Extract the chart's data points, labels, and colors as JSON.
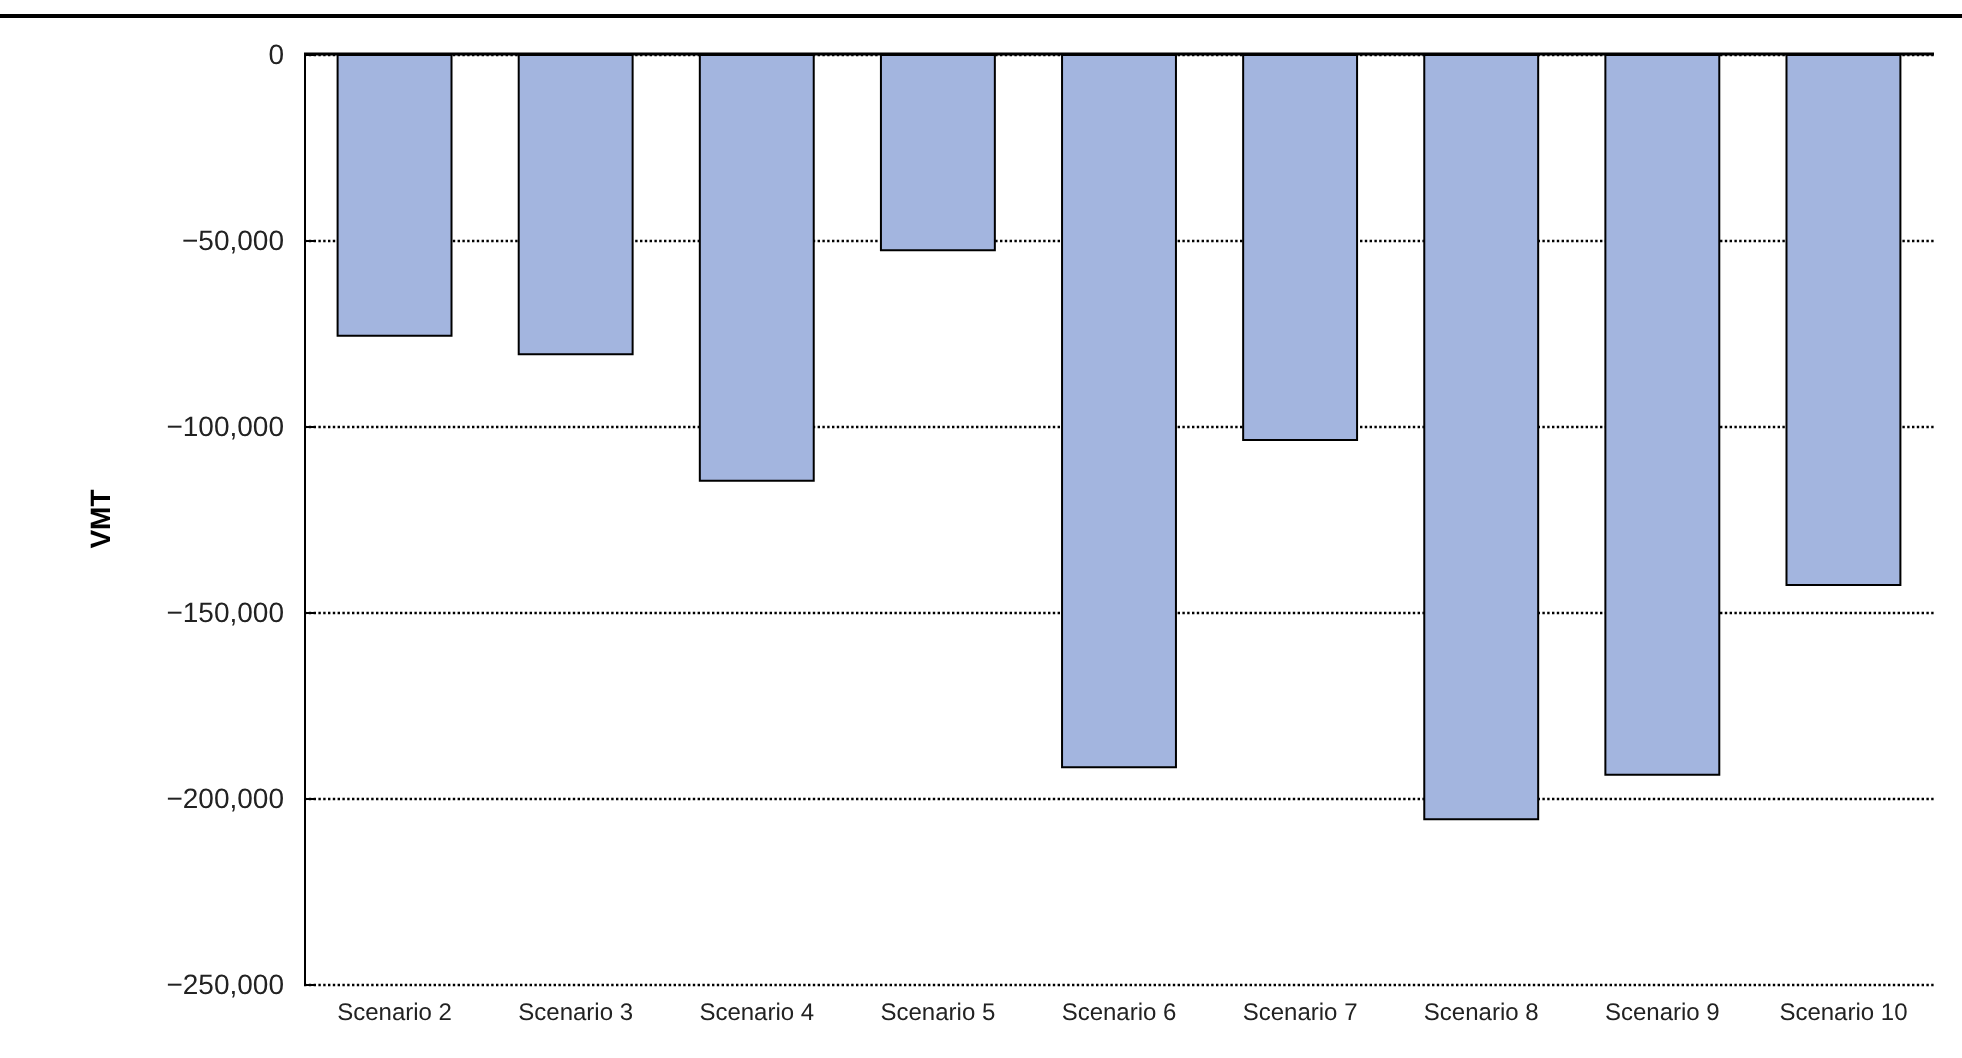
{
  "chart_data": {
    "type": "bar",
    "ylabel": "VMT",
    "categories": [
      "Scenario 2",
      "Scenario 3",
      "Scenario 4",
      "Scenario 5",
      "Scenario 6",
      "Scenario 7",
      "Scenario 8",
      "Scenario 9",
      "Scenario 10"
    ],
    "values": [
      -76000,
      -81000,
      -115000,
      -53000,
      -192000,
      -104000,
      -206000,
      -194000,
      -143000
    ],
    "color": "#a3b5df",
    "ylim": [
      -250000,
      0
    ],
    "yticks": [
      {
        "value": -250000,
        "label": "−250,000"
      },
      {
        "value": -200000,
        "label": "−200,000"
      },
      {
        "value": -150000,
        "label": "−150,000"
      },
      {
        "value": -100000,
        "label": "−100,000"
      },
      {
        "value": -50000,
        "label": "−50,000"
      },
      {
        "value": 0,
        "label": "0"
      }
    ],
    "grid": "y"
  }
}
